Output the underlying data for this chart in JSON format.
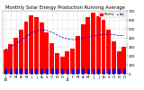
{
  "title": "Monthly Solar Energy Production Running Average",
  "bar_color": "#ff0000",
  "line_color": "#0000dd",
  "categories": [
    "J\n10",
    "F",
    "M",
    "A",
    "M",
    "J",
    "J",
    "A",
    "S",
    "O",
    "N",
    "D",
    "J\n11",
    "F",
    "M",
    "A",
    "M",
    "J",
    "J",
    "A",
    "S",
    "O",
    "N",
    "D"
  ],
  "values": [
    270,
    330,
    400,
    490,
    580,
    650,
    630,
    570,
    460,
    340,
    230,
    190,
    250,
    280,
    420,
    550,
    630,
    680,
    640,
    600,
    490,
    360,
    250,
    300
  ],
  "running_avg": [
    270,
    300,
    333,
    373,
    414,
    453,
    474,
    487,
    482,
    462,
    433,
    404,
    389,
    379,
    382,
    394,
    408,
    421,
    430,
    438,
    440,
    436,
    425,
    425
  ],
  "ylim": [
    0,
    700
  ],
  "yticks": [
    0,
    100,
    200,
    300,
    400,
    500,
    600,
    700
  ],
  "background_color": "#ffffff",
  "grid_color": "#bbbbbb",
  "title_fontsize": 3.8,
  "tick_fontsize": 2.8,
  "bar_width": 0.85
}
